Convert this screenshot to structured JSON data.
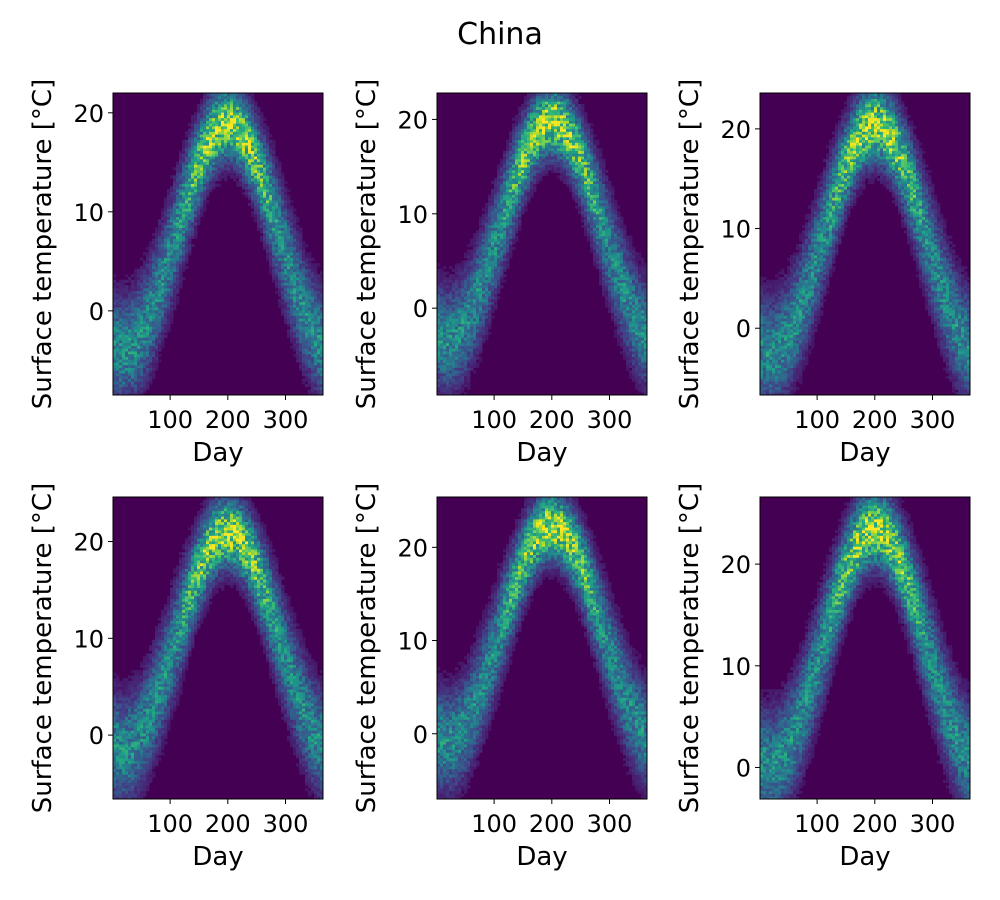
{
  "figure": {
    "title": "China"
  },
  "colormap": {
    "name": "viridis",
    "background": "#440154"
  },
  "chart_data": [
    {
      "type": "heatmap",
      "title": "",
      "xlabel": "Day",
      "ylabel": "Surface temperature [°C]",
      "xlim": [
        1,
        365
      ],
      "ylim": [
        -8.5,
        22
      ],
      "xticks": [
        100,
        200,
        300
      ],
      "yticks": [
        0,
        10,
        20
      ],
      "series": [
        {
          "mean_min": -4.0,
          "mean_max": 18.9,
          "peak_day": 200,
          "spread": 2.8
        }
      ]
    },
    {
      "type": "heatmap",
      "title": "",
      "xlabel": "Day",
      "ylabel": "Surface temperature [°C]",
      "xlim": [
        1,
        365
      ],
      "ylim": [
        -9.2,
        22.8
      ],
      "xticks": [
        100,
        200,
        300
      ],
      "yticks": [
        0,
        10,
        20
      ],
      "series": [
        {
          "mean_min": -3.3,
          "mean_max": 19.8,
          "peak_day": 200,
          "spread": 2.8
        }
      ]
    },
    {
      "type": "heatmap",
      "title": "",
      "xlabel": "Day",
      "ylabel": "Surface temperature [°C]",
      "xlim": [
        1,
        365
      ],
      "ylim": [
        -6.7,
        23.6
      ],
      "xticks": [
        100,
        200,
        300
      ],
      "yticks": [
        0,
        10,
        20
      ],
      "series": [
        {
          "mean_min": -2.5,
          "mean_max": 20.4,
          "peak_day": 200,
          "spread": 2.8
        }
      ]
    },
    {
      "type": "heatmap",
      "title": "",
      "xlabel": "Day",
      "ylabel": "Surface temperature [°C]",
      "xlim": [
        1,
        365
      ],
      "ylim": [
        -6.6,
        24.6
      ],
      "xticks": [
        100,
        200,
        300
      ],
      "yticks": [
        0,
        10,
        20
      ],
      "series": [
        {
          "mean_min": -1.5,
          "mean_max": 21.0,
          "peak_day": 200,
          "spread": 2.8
        }
      ]
    },
    {
      "type": "heatmap",
      "title": "",
      "xlabel": "Day",
      "ylabel": "Surface temperature [°C]",
      "xlim": [
        1,
        365
      ],
      "ylim": [
        -7.0,
        25.4
      ],
      "xticks": [
        100,
        200,
        300
      ],
      "yticks": [
        0,
        10,
        20
      ],
      "series": [
        {
          "mean_min": -0.8,
          "mean_max": 22.3,
          "peak_day": 200,
          "spread": 2.8
        }
      ]
    },
    {
      "type": "heatmap",
      "title": "",
      "xlabel": "Day",
      "ylabel": "Surface temperature [°C]",
      "xlim": [
        1,
        365
      ],
      "ylim": [
        -3.1,
        26.6
      ],
      "xticks": [
        100,
        200,
        300
      ],
      "yticks": [
        0,
        10,
        20
      ],
      "series": [
        {
          "mean_min": 0.3,
          "mean_max": 23.5,
          "peak_day": 200,
          "spread": 2.8
        }
      ]
    }
  ]
}
